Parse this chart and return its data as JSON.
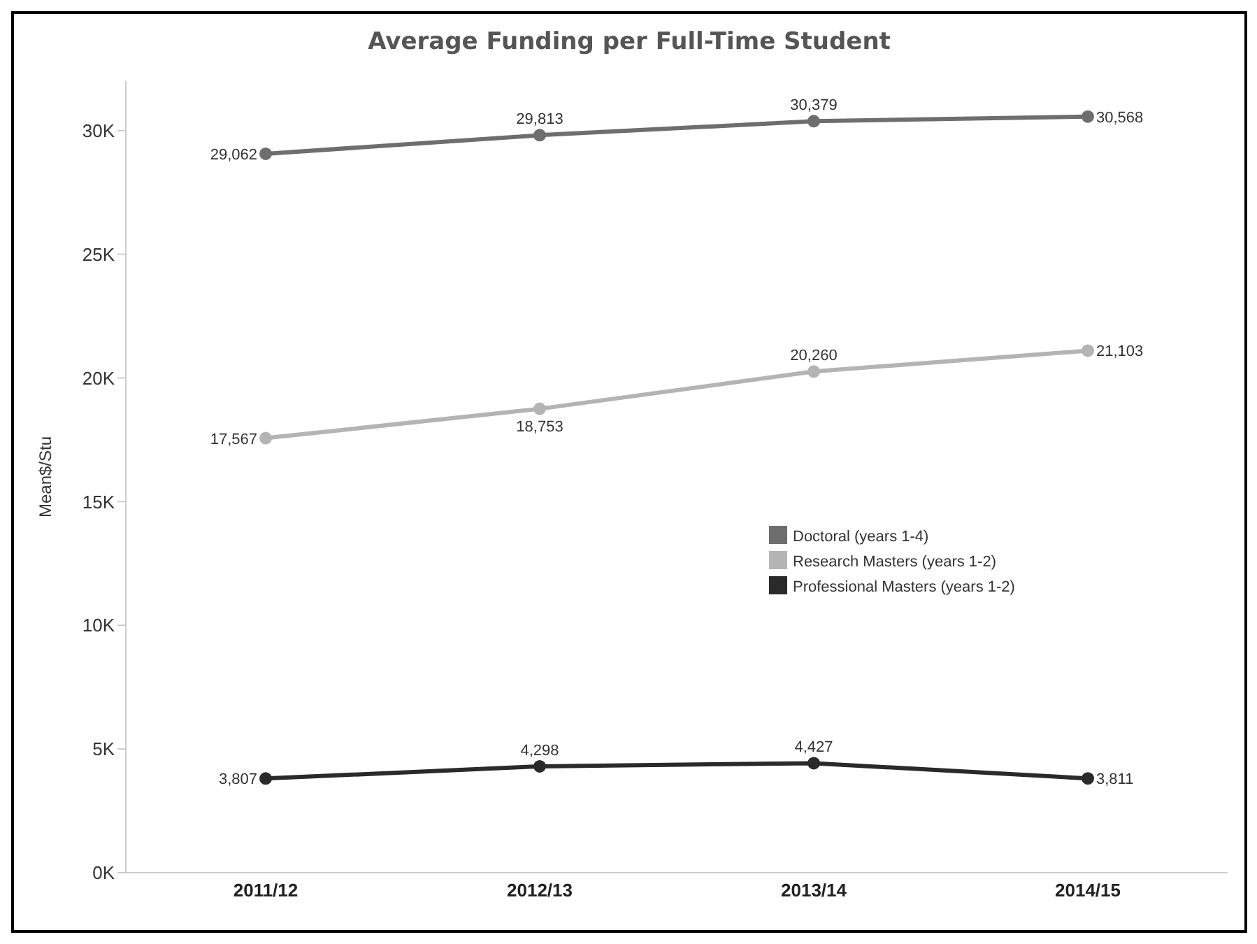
{
  "chart_data": {
    "type": "line",
    "title": "Average Funding per Full-Time Student",
    "ylabel": "Mean$/Stu",
    "categories": [
      "2011/12",
      "2012/13",
      "2013/14",
      "2014/15"
    ],
    "series": [
      {
        "name": "Doctoral (years 1-4)",
        "color": "#6e6e6e",
        "values": [
          29062,
          29813,
          30379,
          30568
        ],
        "value_labels": [
          "29,062",
          "29,813",
          "30,379",
          "30,568"
        ]
      },
      {
        "name": "Research Masters (years 1-2)",
        "color": "#b4b4b4",
        "values": [
          17567,
          18753,
          20260,
          21103
        ],
        "value_labels": [
          "17,567",
          "18,753",
          "20,260",
          "21,103"
        ]
      },
      {
        "name": "Professional Masters (years 1-2)",
        "color": "#2a2a2a",
        "values": [
          3807,
          4298,
          4427,
          3811
        ],
        "value_labels": [
          "3,807",
          "4,298",
          "4,427",
          "3,811"
        ]
      }
    ],
    "ylim": [
      0,
      32000
    ],
    "yticks": [
      {
        "value": 0,
        "label": "0K"
      },
      {
        "value": 5000,
        "label": "5K"
      },
      {
        "value": 10000,
        "label": "10K"
      },
      {
        "value": 15000,
        "label": "15K"
      },
      {
        "value": 20000,
        "label": "20K"
      },
      {
        "value": 25000,
        "label": "25K"
      },
      {
        "value": 30000,
        "label": "30K"
      }
    ],
    "grid": false,
    "legend": "right",
    "marker": "circle",
    "line_style": "solid"
  }
}
